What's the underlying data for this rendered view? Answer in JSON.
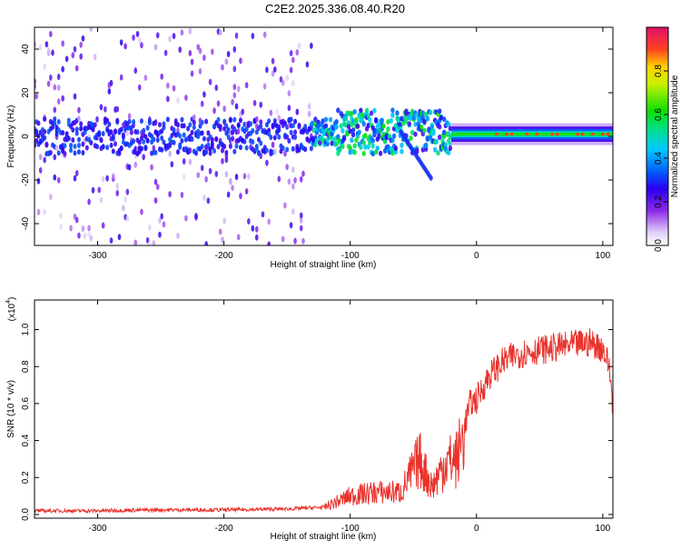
{
  "title": "C2E2.2025.336.08.40.R20",
  "colors": {
    "snr_line": "#e8332d",
    "colormap": [
      "#ffffff",
      "#c8a8f0",
      "#8020e0",
      "#2000f0",
      "#0080ff",
      "#00d0e0",
      "#00e000",
      "#a0f000",
      "#ffff00",
      "#ff8000",
      "#ff2020",
      "#e0106a"
    ]
  },
  "chart_data": [
    {
      "type": "heatmap",
      "title": "",
      "xlabel": "Height of straight line (km)",
      "ylabel": "Frequency (Hz)",
      "xlim": [
        -350,
        108
      ],
      "ylim": [
        -50,
        50
      ],
      "xticks": [
        -300,
        -200,
        -100,
        0,
        100
      ],
      "yticks": [
        -40,
        -20,
        0,
        20,
        40
      ],
      "xtick_labels": [
        "-300",
        "-200",
        "-100",
        "0",
        "100"
      ],
      "ytick_labels": [
        "-40",
        "-20",
        "0",
        "20",
        "40"
      ],
      "colorbar": {
        "label": "Normalized spectral amplitude",
        "range": [
          0,
          1
        ],
        "ticks": [
          0.0,
          0.2,
          0.4,
          0.6,
          0.8
        ],
        "tick_labels": [
          "0.0",
          "0.2",
          "0.4",
          "0.6",
          "0.8"
        ]
      },
      "features": [
        {
          "name": "noise-region",
          "x_range": [
            -350,
            -130
          ],
          "freq_range": [
            -50,
            50
          ],
          "amplitude": 0.1
        },
        {
          "name": "signal-band-unstable",
          "x_range": [
            -130,
            -20
          ],
          "freq_center": 2,
          "amplitude": 0.35
        },
        {
          "name": "signal-tail-descending",
          "x_range": [
            -60,
            -35
          ],
          "freq_end": -20,
          "amplitude": 0.3
        },
        {
          "name": "signal-band-stable",
          "x_range": [
            -20,
            108
          ],
          "freq_center": 1,
          "amplitude": 0.9
        }
      ]
    },
    {
      "type": "line",
      "title": "",
      "xlabel": "Height of straight line (km)",
      "ylabel": "SNR (10 * v/v)",
      "y_scale_label": "(x10",
      "y_scale_exponent": "4",
      "xlim": [
        -350,
        108
      ],
      "ylim": [
        -0.02,
        1.16
      ],
      "xticks": [
        -300,
        -200,
        -100,
        0,
        100
      ],
      "yticks": [
        0.0,
        0.2,
        0.4,
        0.6,
        0.8,
        1.0
      ],
      "xtick_labels": [
        "-300",
        "-200",
        "-100",
        "0",
        "100"
      ],
      "ytick_labels": [
        "0.0",
        "0.2",
        "0.4",
        "0.6",
        "0.8",
        "1.0"
      ],
      "series": [
        {
          "name": "SNR",
          "x": [
            -350,
            -300,
            -250,
            -200,
            -150,
            -120,
            -100,
            -80,
            -60,
            -45,
            -40,
            -35,
            -25,
            -15,
            -8,
            -5,
            0,
            10,
            20,
            30,
            40,
            60,
            80,
            90,
            100,
            105,
            108
          ],
          "y": [
            0.02,
            0.02,
            0.025,
            0.025,
            0.03,
            0.04,
            0.1,
            0.12,
            0.12,
            0.3,
            0.22,
            0.15,
            0.28,
            0.3,
            0.52,
            0.6,
            0.62,
            0.75,
            0.82,
            0.86,
            0.88,
            0.9,
            0.92,
            0.93,
            0.9,
            0.8,
            0.6
          ]
        }
      ]
    }
  ]
}
